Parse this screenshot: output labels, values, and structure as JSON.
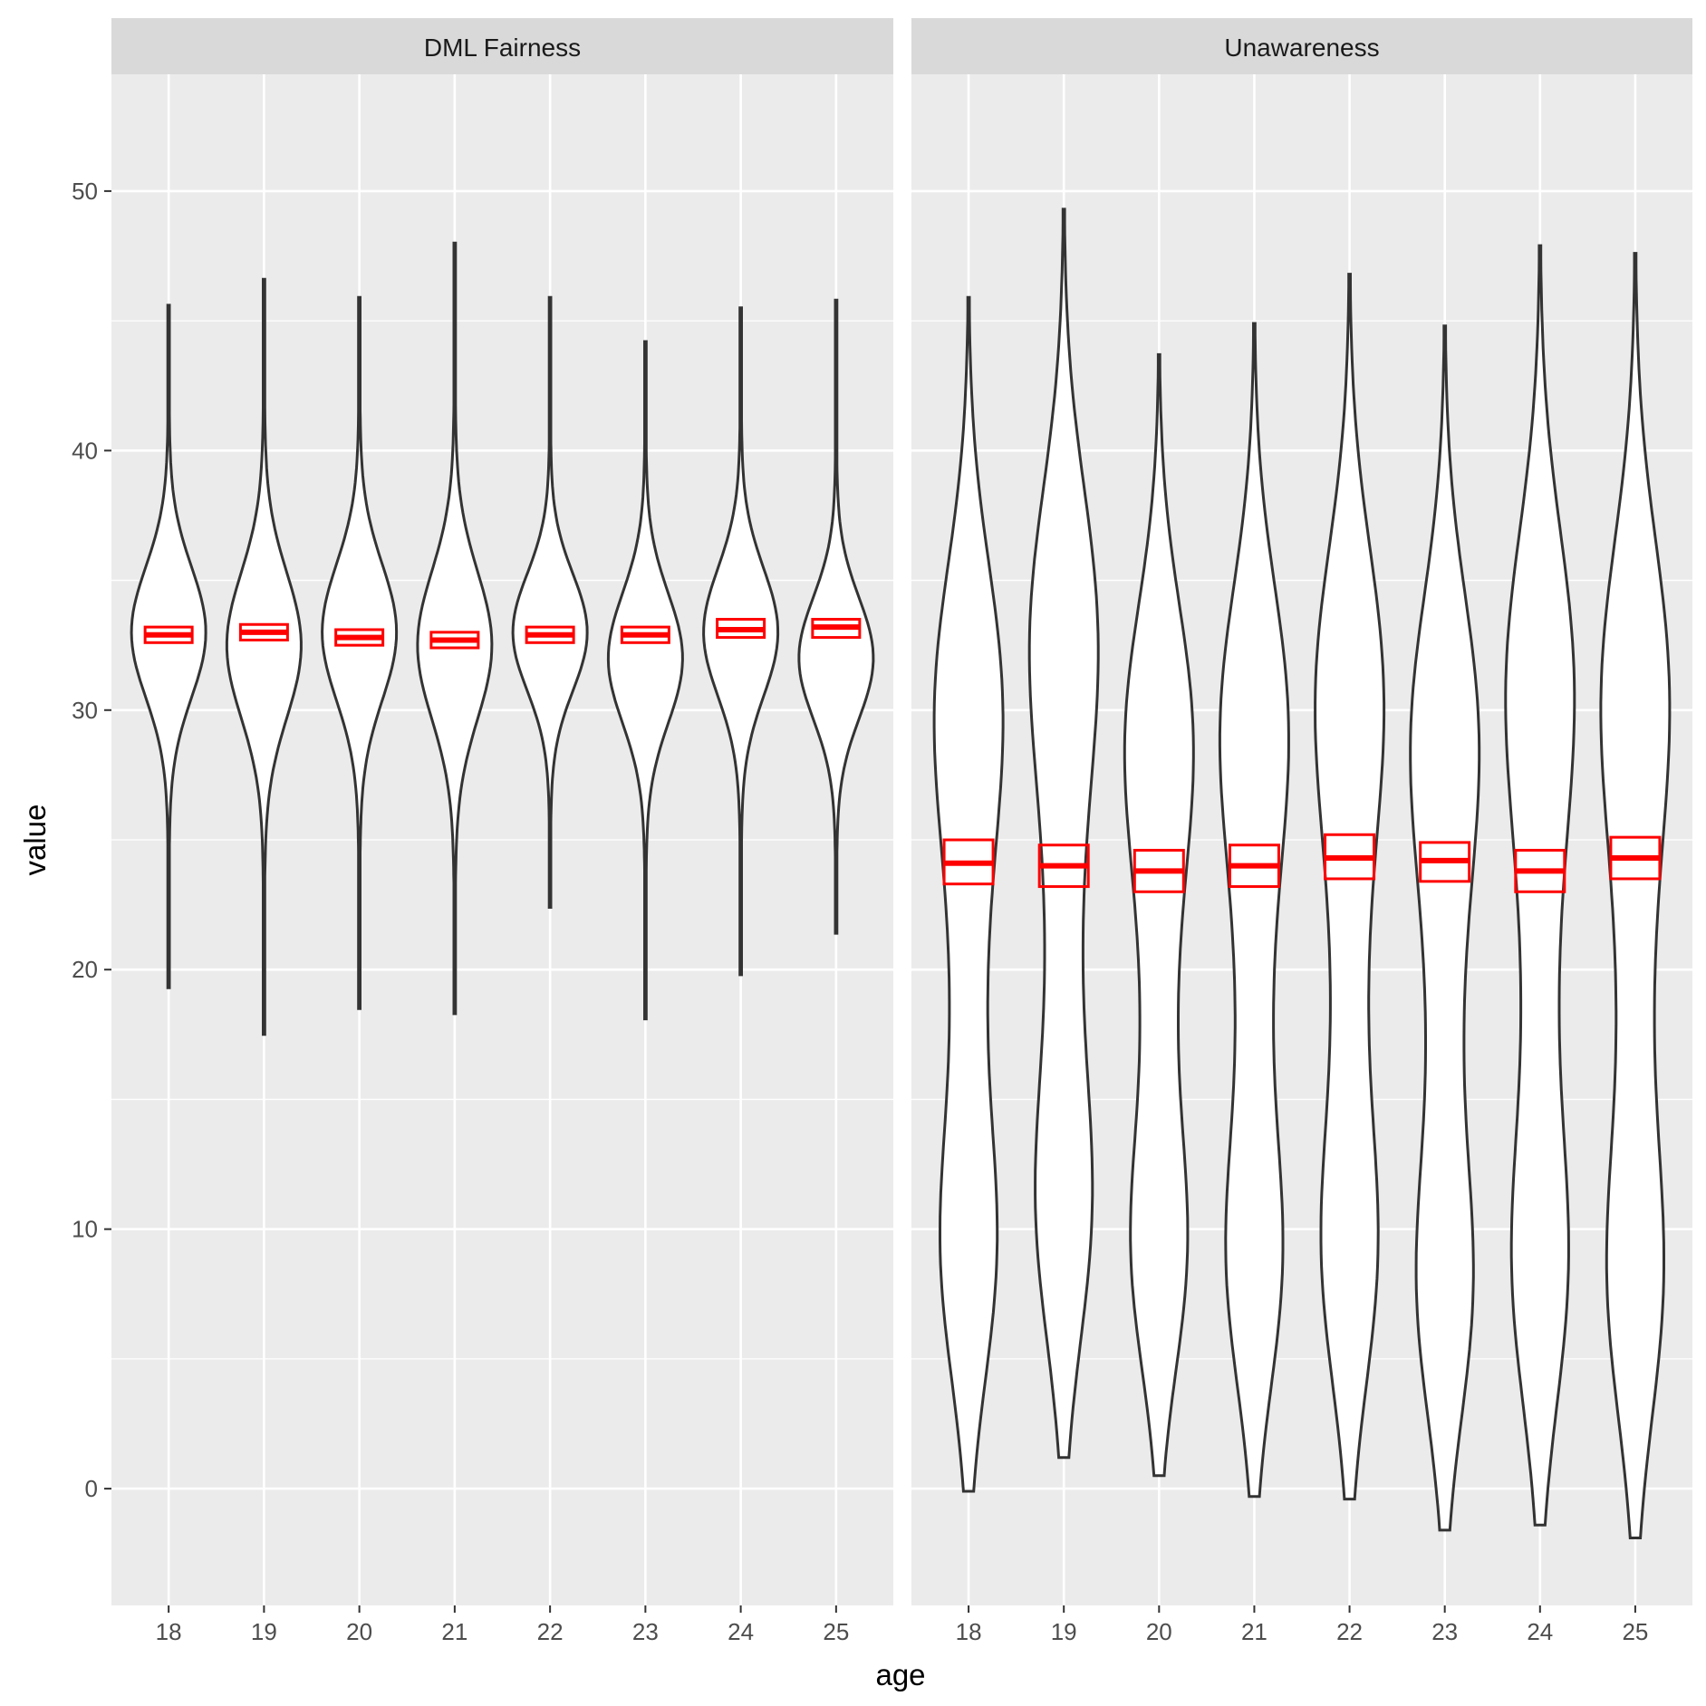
{
  "chart_data": {
    "type": "violin",
    "xlabel": "age",
    "ylabel": "value",
    "ylim": [
      -4.5,
      54.5
    ],
    "y_ticks": [
      0,
      10,
      20,
      30,
      40,
      50
    ],
    "categories": [
      "18",
      "19",
      "20",
      "21",
      "22",
      "23",
      "24",
      "25"
    ],
    "box_color": "#ff0000",
    "violin_outline_color": "#333333",
    "panels": [
      {
        "title": "DML Fairness",
        "violins": [
          {
            "age": "18",
            "min": 19.3,
            "max": 45.6,
            "mode": 33.0,
            "mean": 32.9,
            "ci": [
              32.6,
              33.2
            ]
          },
          {
            "age": "19",
            "min": 17.5,
            "max": 46.6,
            "mode": 32.5,
            "mean": 33.0,
            "ci": [
              32.7,
              33.3
            ]
          },
          {
            "age": "20",
            "min": 18.5,
            "max": 45.9,
            "mode": 33.0,
            "mean": 32.8,
            "ci": [
              32.5,
              33.1
            ]
          },
          {
            "age": "21",
            "min": 18.3,
            "max": 48.0,
            "mode": 32.5,
            "mean": 32.7,
            "ci": [
              32.4,
              33.0
            ]
          },
          {
            "age": "22",
            "min": 22.4,
            "max": 45.9,
            "mode": 33.0,
            "mean": 32.9,
            "ci": [
              32.6,
              33.2
            ]
          },
          {
            "age": "23",
            "min": 18.1,
            "max": 44.2,
            "mode": 32.0,
            "mean": 32.9,
            "ci": [
              32.6,
              33.2
            ]
          },
          {
            "age": "24",
            "min": 19.8,
            "max": 45.5,
            "mode": 33.0,
            "mean": 33.1,
            "ci": [
              32.8,
              33.5
            ]
          },
          {
            "age": "25",
            "min": 21.4,
            "max": 45.8,
            "mode": 32.0,
            "mean": 33.2,
            "ci": [
              32.8,
              33.5
            ]
          }
        ]
      },
      {
        "title": "Unawareness",
        "violins": [
          {
            "age": "18",
            "min": -0.1,
            "max": 45.9,
            "mode": 30.0,
            "mean": 24.1,
            "ci": [
              23.3,
              25.0
            ]
          },
          {
            "age": "19",
            "min": 1.2,
            "max": 49.3,
            "mode": 30.5,
            "mean": 24.0,
            "ci": [
              23.2,
              24.8
            ]
          },
          {
            "age": "20",
            "min": 0.5,
            "max": 43.7,
            "mode": 30.5,
            "mean": 23.8,
            "ci": [
              23.0,
              24.6
            ]
          },
          {
            "age": "21",
            "min": -0.3,
            "max": 44.9,
            "mode": 30.0,
            "mean": 24.0,
            "ci": [
              23.2,
              24.8
            ]
          },
          {
            "age": "22",
            "min": -0.4,
            "max": 46.8,
            "mode": 29.5,
            "mean": 24.3,
            "ci": [
              23.5,
              25.2
            ]
          },
          {
            "age": "23",
            "min": -1.6,
            "max": 44.8,
            "mode": 29.5,
            "mean": 24.2,
            "ci": [
              23.4,
              24.9
            ]
          },
          {
            "age": "24",
            "min": -1.4,
            "max": 47.9,
            "mode": 30.0,
            "mean": 23.8,
            "ci": [
              23.0,
              24.6
            ]
          },
          {
            "age": "25",
            "min": -1.9,
            "max": 47.6,
            "mode": 31.0,
            "mean": 24.3,
            "ci": [
              23.5,
              25.1
            ]
          }
        ]
      }
    ]
  }
}
